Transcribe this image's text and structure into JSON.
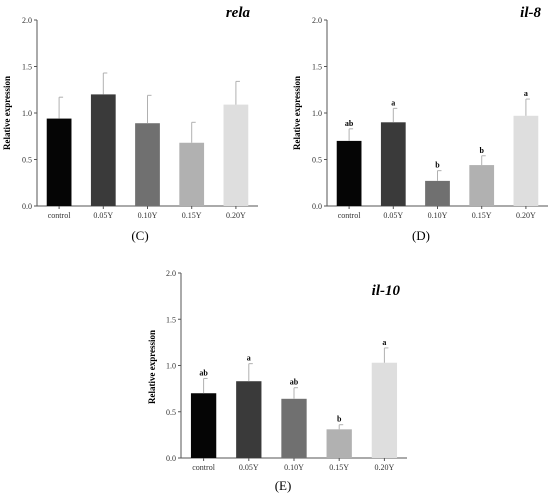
{
  "chart_data": [
    {
      "type": "bar",
      "title": "rela",
      "ylabel": "Relative expression",
      "panel_label": "(C)",
      "categories": [
        "control",
        "0.05Y",
        "0.10Y",
        "0.15Y",
        "0.20Y"
      ],
      "values": [
        0.94,
        1.2,
        0.89,
        0.68,
        1.09
      ],
      "errors": [
        0.23,
        0.23,
        0.3,
        0.22,
        0.25
      ],
      "significance": [
        "",
        "",
        "",
        "",
        ""
      ],
      "bar_colors": [
        "#050505",
        "#3a3a3a",
        "#707070",
        "#b1b1b1",
        "#dedede"
      ],
      "ylim": [
        0,
        2.0
      ],
      "yticks": [
        "0.0",
        "0.5",
        "1.0",
        "1.5",
        "2.0"
      ]
    },
    {
      "type": "bar",
      "title": "il-8",
      "ylabel": "Relative expression",
      "panel_label": "(D)",
      "categories": [
        "control",
        "0.05Y",
        "0.10Y",
        "0.15Y",
        "0.20Y"
      ],
      "values": [
        0.7,
        0.9,
        0.27,
        0.44,
        0.97
      ],
      "errors": [
        0.13,
        0.15,
        0.11,
        0.1,
        0.18
      ],
      "significance": [
        "ab",
        "a",
        "b",
        "b",
        "a"
      ],
      "bar_colors": [
        "#050505",
        "#3a3a3a",
        "#707070",
        "#b1b1b1",
        "#dedede"
      ],
      "ylim": [
        0,
        2.0
      ],
      "yticks": [
        "0.0",
        "0.5",
        "1.0",
        "1.5",
        "2.0"
      ]
    },
    {
      "type": "bar",
      "title": "il-10",
      "ylabel": "Relative expression",
      "panel_label": "(E)",
      "categories": [
        "control",
        "0.05Y",
        "0.10Y",
        "0.15Y",
        "0.20Y"
      ],
      "values": [
        0.7,
        0.83,
        0.64,
        0.31,
        1.03
      ],
      "errors": [
        0.16,
        0.19,
        0.12,
        0.05,
        0.16
      ],
      "significance": [
        "ab",
        "a",
        "ab",
        "b",
        "a"
      ],
      "bar_colors": [
        "#050505",
        "#3a3a3a",
        "#707070",
        "#b1b1b1",
        "#dedede"
      ],
      "ylim": [
        0,
        2.0
      ],
      "yticks": [
        "0.0",
        "0.5",
        "1.0",
        "1.5",
        "2.0"
      ]
    }
  ]
}
